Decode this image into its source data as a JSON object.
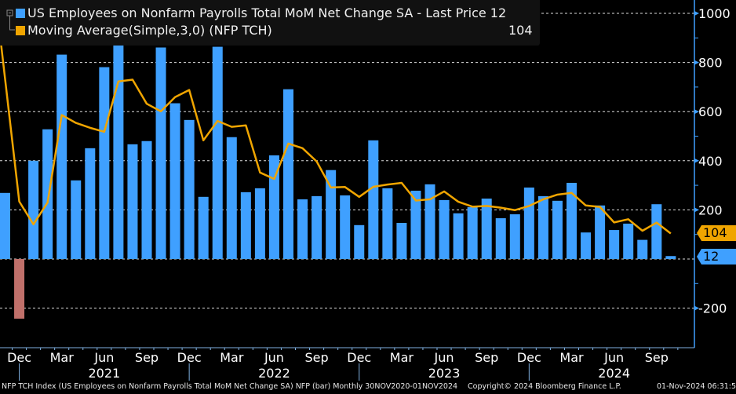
{
  "legend": {
    "series1_label": "US Employees on Nonfarm Payrolls Total MoM Net Change SA - Last Price 12",
    "series2_label": "Moving Average(Simple,3,0) (NFP TCH)",
    "series2_value": "104"
  },
  "tags": {
    "ma_last": "104",
    "bar_last": "12"
  },
  "footer": {
    "left": "NFP TCH Index (US Employees on Nonfarm Payrolls Total MoM Net Change SA) NFP (bar)  Monthly 30NOV2020-01NOV2024",
    "center": "Copyright© 2024 Bloomberg Finance L.P.",
    "right": "01-Nov-2024 06:31:56"
  },
  "chart_data": {
    "type": "bar",
    "title": "",
    "ylim": [
      -350,
      1050
    ],
    "y_ticks": [
      -200,
      0,
      200,
      400,
      600,
      800,
      1000
    ],
    "y_tick_labels": [
      "-200",
      "",
      "200",
      "400",
      "600",
      "800",
      "1000"
    ],
    "y_axis_side": "right",
    "grid": true,
    "legend_position": "top-left",
    "colors": {
      "bar": "#3fa0ff",
      "negative_bar": "#c0706a",
      "ma": "#f0a500",
      "background": "#000000"
    },
    "x": [
      "2020-11",
      "2020-12",
      "2021-01",
      "2021-02",
      "2021-03",
      "2021-04",
      "2021-05",
      "2021-06",
      "2021-07",
      "2021-08",
      "2021-09",
      "2021-10",
      "2021-11",
      "2021-12",
      "2022-01",
      "2022-02",
      "2022-03",
      "2022-04",
      "2022-05",
      "2022-06",
      "2022-07",
      "2022-08",
      "2022-09",
      "2022-10",
      "2022-11",
      "2022-12",
      "2023-01",
      "2023-02",
      "2023-03",
      "2023-04",
      "2023-05",
      "2023-06",
      "2023-07",
      "2023-08",
      "2023-09",
      "2023-10",
      "2023-11",
      "2023-12",
      "2024-01",
      "2024-02",
      "2024-03",
      "2024-04",
      "2024-05",
      "2024-06",
      "2024-07",
      "2024-08",
      "2024-09",
      "2024-10"
    ],
    "x_month_labels": [
      {
        "month": "2020-12",
        "label": "Dec"
      },
      {
        "month": "2021-03",
        "label": "Mar"
      },
      {
        "month": "2021-06",
        "label": "Jun"
      },
      {
        "month": "2021-09",
        "label": "Sep"
      },
      {
        "month": "2021-12",
        "label": "Dec"
      },
      {
        "month": "2022-03",
        "label": "Mar"
      },
      {
        "month": "2022-06",
        "label": "Jun"
      },
      {
        "month": "2022-09",
        "label": "Sep"
      },
      {
        "month": "2022-12",
        "label": "Dec"
      },
      {
        "month": "2023-03",
        "label": "Mar"
      },
      {
        "month": "2023-06",
        "label": "Jun"
      },
      {
        "month": "2023-09",
        "label": "Sep"
      },
      {
        "month": "2023-12",
        "label": "Dec"
      },
      {
        "month": "2024-03",
        "label": "Mar"
      },
      {
        "month": "2024-06",
        "label": "Jun"
      },
      {
        "month": "2024-09",
        "label": "Sep"
      }
    ],
    "x_year_labels": [
      {
        "month": "2021-06",
        "label": "2021"
      },
      {
        "month": "2022-06",
        "label": "2022"
      },
      {
        "month": "2023-06",
        "label": "2023"
      },
      {
        "month": "2024-06",
        "label": "2024"
      }
    ],
    "series": [
      {
        "name": "US Employees on Nonfarm Payrolls Total MoM Net Change SA",
        "kind": "bar",
        "values": [
          269,
          -243,
          400,
          528,
          832,
          320,
          451,
          781,
          1091,
          467,
          480,
          861,
          634,
          566,
          253,
          864,
          496,
          272,
          288,
          422,
          691,
          243,
          256,
          362,
          259,
          138,
          483,
          288,
          147,
          278,
          304,
          240,
          186,
          211,
          246,
          166,
          182,
          291,
          256,
          237,
          310,
          108,
          218,
          118,
          144,
          78,
          223,
          12
        ]
      },
      {
        "name": "Moving Average(Simple,3,0) (NFP TCH)",
        "kind": "line",
        "values": [
          848,
          234,
          141,
          230,
          586,
          554,
          534,
          518,
          723,
          730,
          632,
          601,
          659,
          688,
          483,
          562,
          538,
          544,
          352,
          326,
          470,
          451,
          397,
          291,
          293,
          253,
          294,
          303,
          310,
          238,
          243,
          275,
          233,
          213,
          216,
          209,
          199,
          216,
          243,
          262,
          269,
          218,
          212,
          149,
          162,
          115,
          148,
          104
        ]
      }
    ]
  }
}
